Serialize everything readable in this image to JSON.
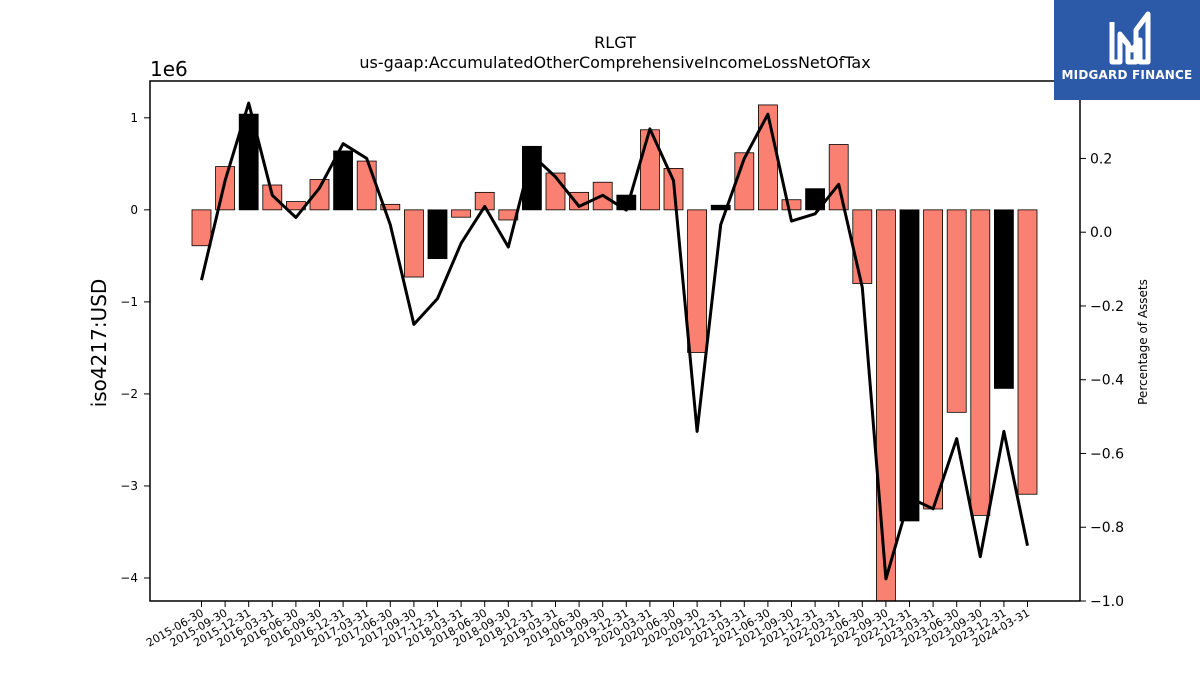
{
  "chart_data": {
    "type": "bar",
    "title": "RLGT",
    "subtitle": "us-gaap:AccumulatedOtherComprehensiveIncomeLossNetOfTax",
    "ylabel": "iso4217:USD",
    "y_offset_label": "1e6",
    "y2label": "Percentage of Assets",
    "ylim": [
      -4.25,
      1.4
    ],
    "y2lim": [
      -1.0,
      0.41
    ],
    "yticks": [
      1,
      0,
      -1,
      -2,
      -3,
      -4
    ],
    "yticklabels": [
      "1",
      "0",
      "−1",
      "−2",
      "−3",
      "−4"
    ],
    "y2ticks": [
      0.2,
      0.0,
      -0.2,
      -0.4,
      -0.6,
      -0.8,
      -1.0
    ],
    "y2ticklabels": [
      "0.2",
      "0.0",
      "−0.2",
      "−0.4",
      "−0.6",
      "−0.8",
      "−1.0"
    ],
    "categories": [
      "2015-06-30",
      "2015-09-30",
      "2015-12-31",
      "2016-03-31",
      "2016-06-30",
      "2016-09-30",
      "2016-12-31",
      "2017-03-31",
      "2017-06-30",
      "2017-09-30",
      "2017-12-31",
      "2018-03-31",
      "2018-06-30",
      "2018-09-30",
      "2018-12-31",
      "2019-03-31",
      "2019-06-30",
      "2019-09-30",
      "2019-12-31",
      "2020-03-31",
      "2020-06-30",
      "2020-09-30",
      "2020-12-31",
      "2021-03-31",
      "2021-06-30",
      "2021-09-30",
      "2021-12-31",
      "2022-03-31",
      "2022-06-30",
      "2022-09-30",
      "2022-12-31",
      "2023-03-31",
      "2023-06-30",
      "2023-09-30",
      "2023-12-31",
      "2024-03-31"
    ],
    "series": [
      {
        "type": "bar",
        "values": [
          -0.39,
          0.47,
          1.04,
          0.27,
          0.09,
          0.33,
          0.64,
          0.53,
          0.06,
          -0.73,
          -0.53,
          -0.08,
          0.19,
          -0.11,
          0.69,
          0.4,
          0.19,
          0.3,
          0.16,
          0.87,
          0.45,
          -1.55,
          0.05,
          0.62,
          1.14,
          0.11,
          0.23,
          0.71,
          -0.8,
          -4.25,
          -3.38,
          -3.25,
          -2.2,
          -3.32,
          -1.94,
          -3.09
        ],
        "colors": [
          "salmon",
          "salmon",
          "black",
          "salmon",
          "salmon",
          "salmon",
          "black",
          "salmon",
          "salmon",
          "salmon",
          "black",
          "salmon",
          "salmon",
          "salmon",
          "black",
          "salmon",
          "salmon",
          "salmon",
          "black",
          "salmon",
          "salmon",
          "salmon",
          "black",
          "salmon",
          "salmon",
          "salmon",
          "black",
          "salmon",
          "salmon",
          "salmon",
          "black",
          "salmon",
          "salmon",
          "salmon",
          "black",
          "salmon"
        ]
      },
      {
        "type": "line",
        "axis": "y2",
        "values": [
          -0.13,
          0.14,
          0.35,
          0.1,
          0.04,
          0.12,
          0.24,
          0.2,
          0.02,
          -0.25,
          -0.18,
          -0.03,
          0.07,
          -0.04,
          0.21,
          0.15,
          0.07,
          0.1,
          0.06,
          0.28,
          0.14,
          -0.54,
          0.02,
          0.2,
          0.32,
          0.03,
          0.05,
          0.13,
          -0.15,
          -0.94,
          -0.72,
          -0.75,
          -0.56,
          -0.88,
          -0.54,
          -0.85
        ]
      }
    ],
    "colors": {
      "salmon": "#fa8072",
      "black": "#000000",
      "line": "#000000"
    }
  },
  "logo": {
    "text": "MIDGARD FINANCE",
    "bg": "#2d5aa8"
  }
}
